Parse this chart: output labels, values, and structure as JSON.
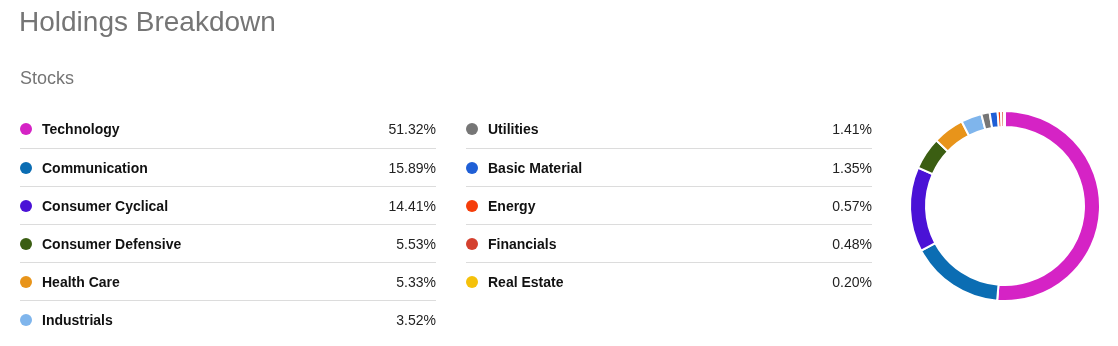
{
  "chart_data": {
    "type": "donut",
    "title": "Holdings Breakdown",
    "subtitle": "Stocks",
    "categories": [
      "Technology",
      "Communication",
      "Consumer Cyclical",
      "Consumer Defensive",
      "Health Care",
      "Industrials",
      "Utilities",
      "Basic Material",
      "Energy",
      "Financials",
      "Real Estate"
    ],
    "values": [
      51.32,
      15.89,
      14.41,
      5.53,
      5.33,
      3.52,
      1.41,
      1.35,
      0.57,
      0.48,
      0.2
    ],
    "value_labels": [
      "51.32%",
      "15.89%",
      "14.41%",
      "5.53%",
      "5.33%",
      "3.52%",
      "1.41%",
      "1.35%",
      "0.57%",
      "0.48%",
      "0.20%"
    ],
    "colors": [
      "#d523c5",
      "#0b6db3",
      "#4a12d6",
      "#3b5e12",
      "#e8941a",
      "#7fb5ec",
      "#767676",
      "#1f5fd6",
      "#f53d0a",
      "#d4402e",
      "#f5c10a"
    ],
    "legend": "left"
  }
}
